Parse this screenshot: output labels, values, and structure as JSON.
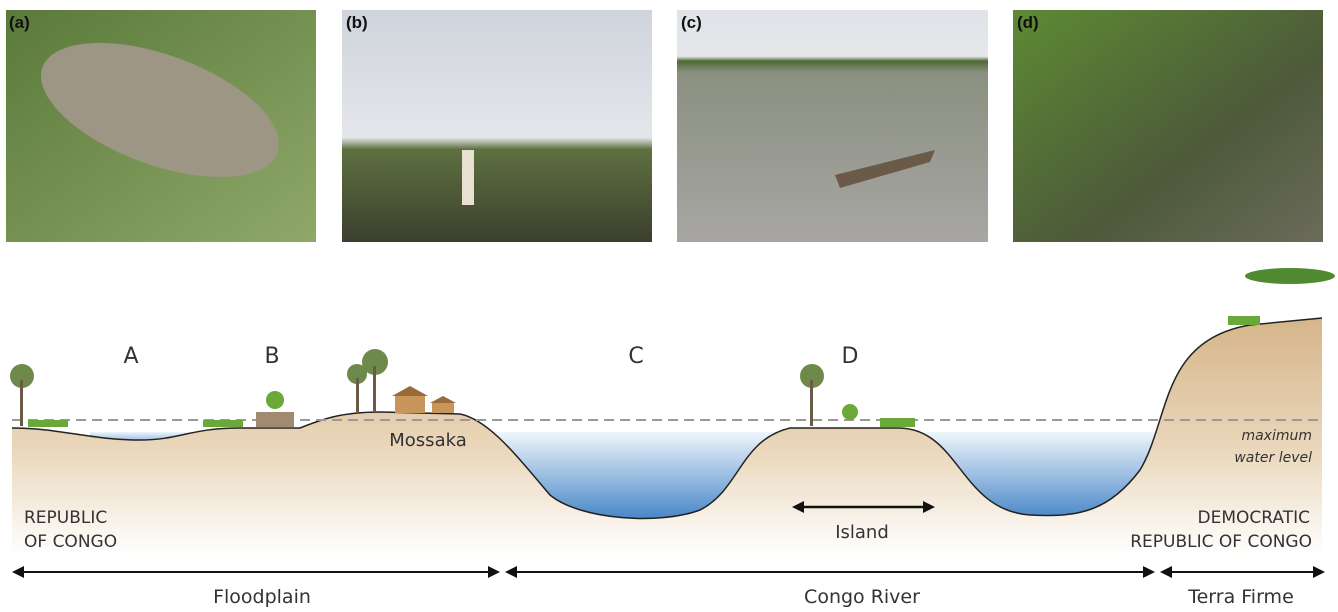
{
  "photos": [
    "(a)",
    "(b)",
    "(c)",
    "(d)"
  ],
  "sites": [
    "A",
    "B",
    "C",
    "D"
  ],
  "places": {
    "town": "Mossaka",
    "island": "Island"
  },
  "water_level": [
    "maximum",
    "water level"
  ],
  "countries": {
    "left": [
      "REPUBLIC",
      "OF CONGO"
    ],
    "right": [
      "DEMOCRATIC",
      "REPUBLIC OF CONGO"
    ]
  },
  "zones": [
    "Floodplain",
    "Congo River",
    "Terra Firme"
  ]
}
